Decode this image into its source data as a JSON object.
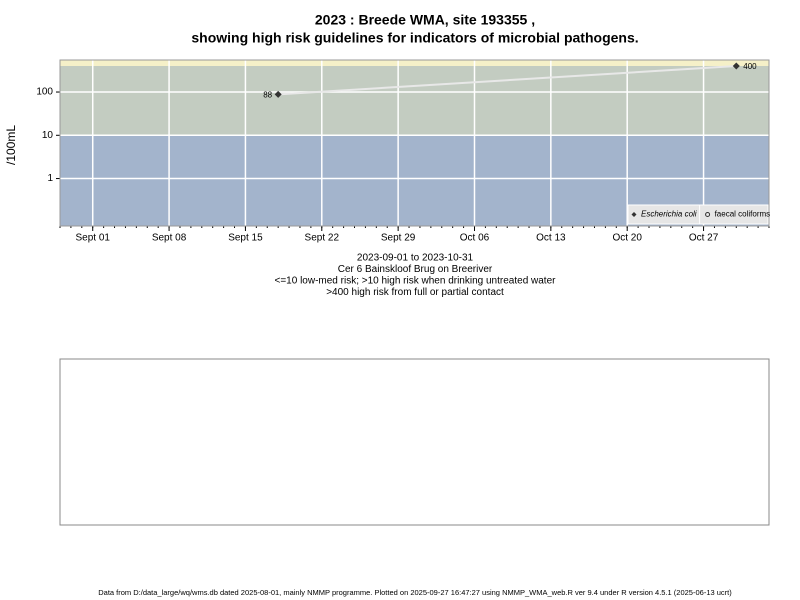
{
  "chart_data": {
    "type": "line",
    "title": "2023 : Breede WMA, site 193355 ,",
    "subtitle": "showing high risk guidelines for indicators of microbial pathogens.",
    "ylabel": "/100mL",
    "log_y": true,
    "grid": true,
    "legend": "lower right",
    "xlim": [
      "2023-08-29",
      "2023-11-02"
    ],
    "xticks": [
      {
        "value": "2023-09-01",
        "label": "Sept 01"
      },
      {
        "value": "2023-09-08",
        "label": "Sept 08"
      },
      {
        "value": "2023-09-15",
        "label": "Sept 15"
      },
      {
        "value": "2023-09-22",
        "label": "Sept 22"
      },
      {
        "value": "2023-09-29",
        "label": "Sept 29"
      },
      {
        "value": "2023-10-06",
        "label": "Oct 06"
      },
      {
        "value": "2023-10-13",
        "label": "Oct 13"
      },
      {
        "value": "2023-10-20",
        "label": "Oct 20"
      },
      {
        "value": "2023-10-27",
        "label": "Oct 27"
      }
    ],
    "ylim": [
      0.08,
      550
    ],
    "yticks": [
      1,
      10,
      100
    ],
    "thresholds": [
      10,
      400
    ],
    "band_colors": [
      "#a3b4cc",
      "#c3ccc1",
      "#f5f0c8"
    ],
    "series": [
      {
        "name": "Escherichia coli",
        "color": "#333333",
        "marker": "diamond",
        "line_color": "#e8e8e8",
        "x": [
          "2023-09-18",
          "2023-10-30"
        ],
        "values": [
          88,
          400
        ]
      },
      {
        "name": "faecal coliforms",
        "color": "#333333",
        "marker": "circle",
        "x": [],
        "values": []
      }
    ],
    "captions": [
      "2023-09-01 to 2023-10-31",
      "Cer 6 Bainskloof Brug on Breeriver",
      "<=10 low-med risk; >10 high risk when drinking untreated water",
      ">400 high risk from full or partial contact"
    ],
    "footer": "Data from D:/data_large/wq/wms.db dated 2025-08-01, mainly NMMP programme. Plotted on 2025-09-27 16:47:27 using NMMP_WMA_web.R ver 9.4 under R version 4.5.1 (2025-06-13 ucrt)"
  }
}
